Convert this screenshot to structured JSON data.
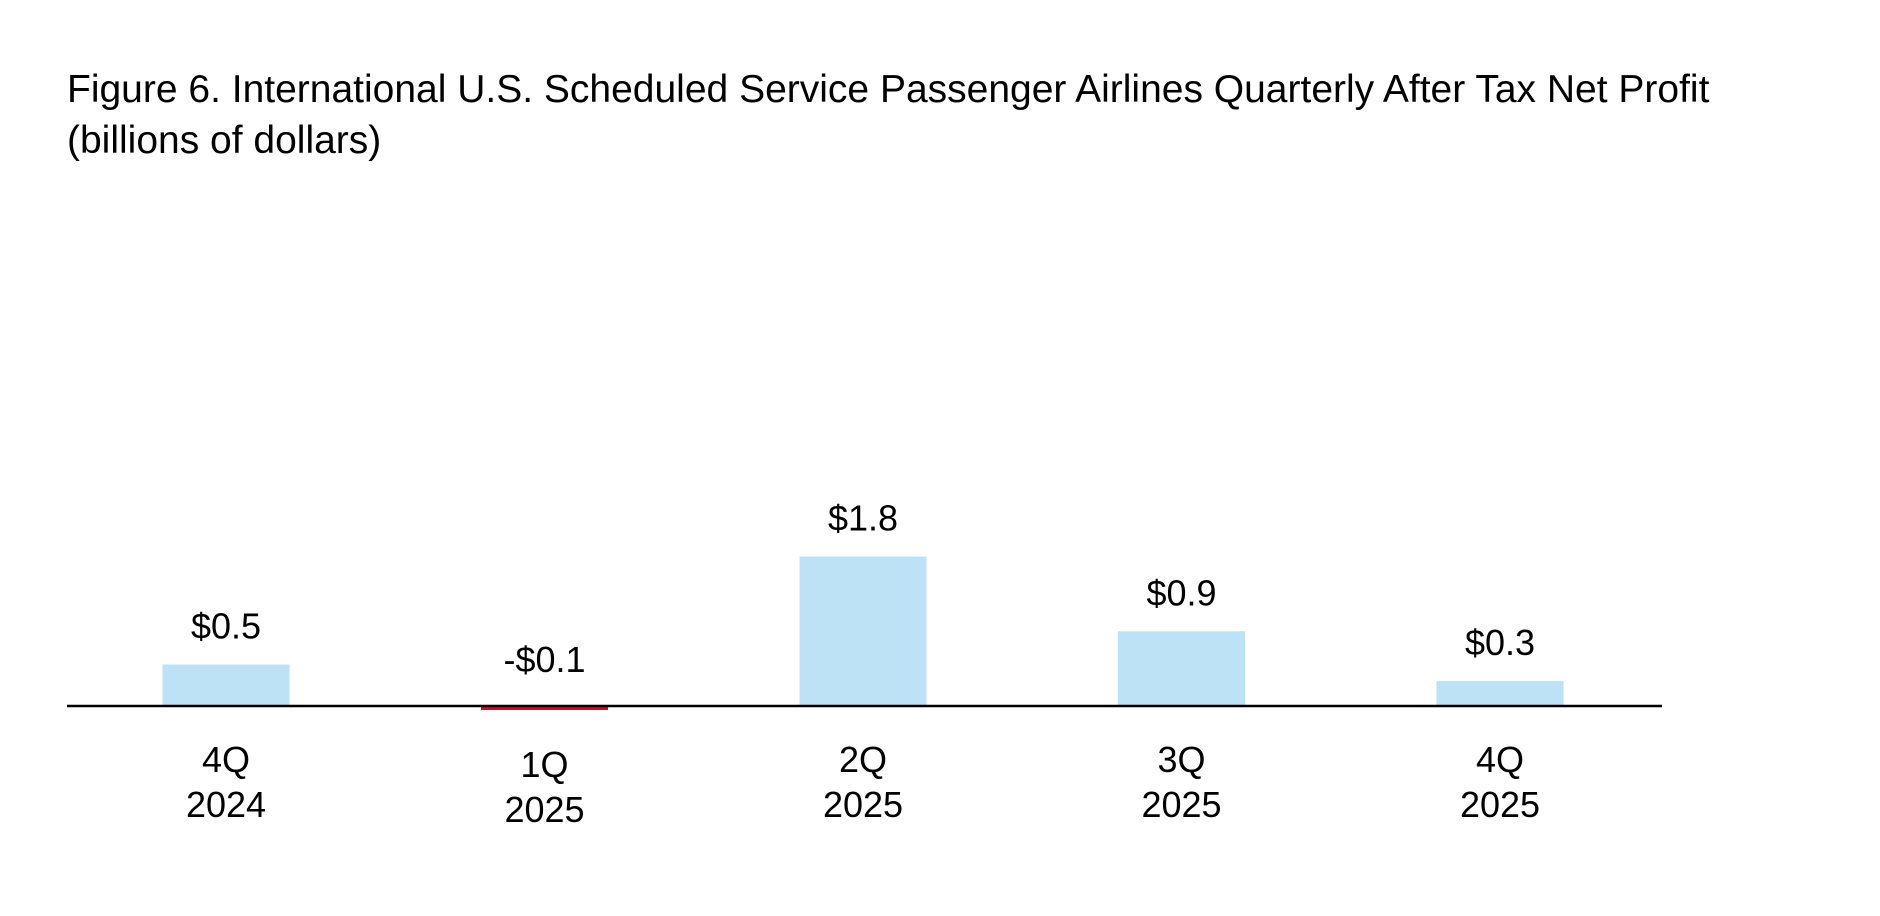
{
  "chart_data": {
    "type": "bar",
    "title": "Figure 6. International U.S. Scheduled Service Passenger Airlines Quarterly After Tax Net Profit",
    "subtitle": "(billions of dollars)",
    "xlabel": "",
    "ylabel": "",
    "categories": [
      [
        "4Q",
        "2024"
      ],
      [
        "1Q",
        "2025"
      ],
      [
        "2Q",
        "2025"
      ],
      [
        "3Q",
        "2025"
      ],
      [
        "4Q",
        "2025"
      ]
    ],
    "values": [
      0.5,
      -0.1,
      1.8,
      0.9,
      0.3
    ],
    "data_labels": [
      "$0.5",
      "-$0.1",
      "$1.8",
      "$0.9",
      "$0.3"
    ],
    "ylim": [
      -0.2,
      6.0
    ],
    "grid": false,
    "legend": "none",
    "colors": {
      "positive": "#bde2f5",
      "negative": "#c8102e",
      "axis": "#000000"
    }
  }
}
